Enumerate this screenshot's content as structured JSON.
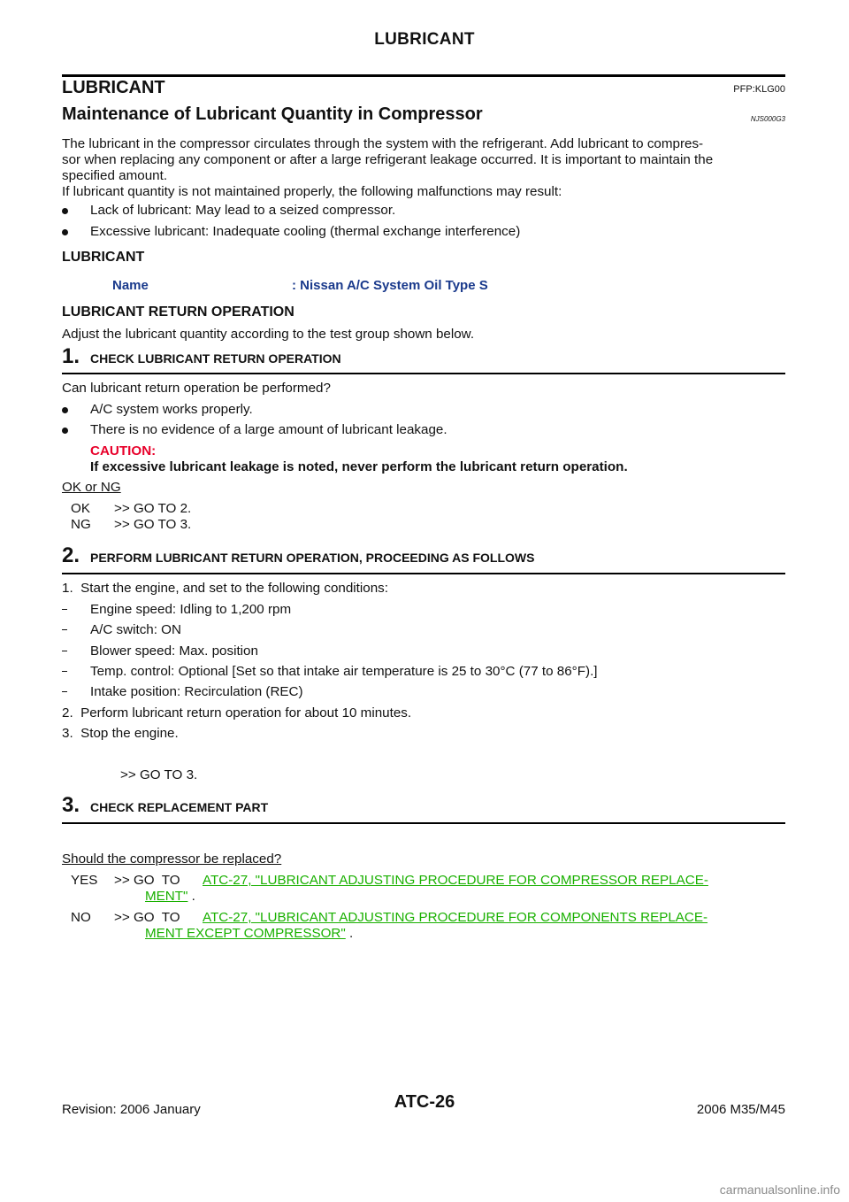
{
  "page": {
    "running_title": "LUBRICANT",
    "footer_left": "Revision: 2006 January",
    "footer_center": "ATC-26",
    "footer_right": "2006 M35/M45",
    "watermark": "carmanualsonline.info"
  },
  "section": {
    "title": "LUBRICANT",
    "code": "PFP:KLG00"
  },
  "subsection": {
    "title": "Maintenance of Lubricant Quantity in Compressor",
    "code": "NJS000G3"
  },
  "intro": {
    "para1_line1": "The lubricant in the compressor circulates through the system with the refrigerant. Add lubricant to compres-",
    "para1_line2": "sor when replacing any component or after a large refrigerant leakage occurred. It is important to maintain the",
    "para1_line3": "specified amount.",
    "para2": "If lubricant quantity is not maintained properly, the following malfunctions may result:",
    "bullets": [
      "Lack of lubricant: May lead to a seized compressor.",
      "Excessive lubricant: Inadequate cooling (thermal exchange interference)"
    ]
  },
  "lubricant": {
    "heading": "LUBRICANT",
    "key": "Name",
    "value": ": Nissan A/C System Oil Type S"
  },
  "return_op": {
    "heading": "LUBRICANT RETURN OPERATION",
    "text": "Adjust the lubricant quantity according to the test group shown below."
  },
  "step1": {
    "num": "1.",
    "title": "CHECK LUBRICANT RETURN OPERATION",
    "question": "Can lubricant return operation be performed?",
    "bullets": [
      "A/C system works properly.",
      "There is no evidence of a large amount of lubricant leakage."
    ],
    "caution_label": "CAUTION:",
    "caution_text": "If excessive lubricant leakage is noted, never perform the lubricant return operation.",
    "result_label": "OK or NG",
    "results": [
      {
        "key": "OK",
        "value": ">> GO TO 2."
      },
      {
        "key": "NG",
        "value": ">> GO TO 3."
      }
    ]
  },
  "step2": {
    "num": "2.",
    "title": "PERFORM LUBRICANT RETURN OPERATION, PROCEEDING AS FOLLOWS",
    "item1": "1.  Start the engine, and set to the following conditions:",
    "conditions": [
      "Engine speed: Idling to 1,200 rpm",
      "A/C switch: ON",
      "Blower speed: Max. position",
      "Temp. control: Optional [Set so that intake air temperature is 25 to 30°C (77 to 86°F).]",
      "Intake position: Recirculation (REC)"
    ],
    "item2": "2.  Perform lubricant return operation for about 10 minutes.",
    "item3": "3.  Stop the engine.",
    "go": ">> GO TO 3."
  },
  "step3": {
    "num": "3.",
    "title": "CHECK REPLACEMENT PART",
    "question": "Should the compressor be replaced?",
    "yes_key": "YES",
    "yes_prefix": ">> GO  TO",
    "yes_link_line1": "ATC-27, \"LUBRICANT ADJUSTING PROCEDURE FOR COMPRESSOR REPLACE-",
    "yes_link_line2": "MENT\"",
    "no_key": "NO",
    "no_prefix": ">> GO  TO",
    "no_link_line1": "ATC-27, \"LUBRICANT ADJUSTING PROCEDURE FOR COMPONENTS REPLACE-",
    "no_link_line2": "MENT EXCEPT COMPRESSOR\"",
    "trailing": " ."
  },
  "colors": {
    "caution": "#e8002a",
    "link": "#19b000",
    "key_blue": "#1a3a8c"
  }
}
